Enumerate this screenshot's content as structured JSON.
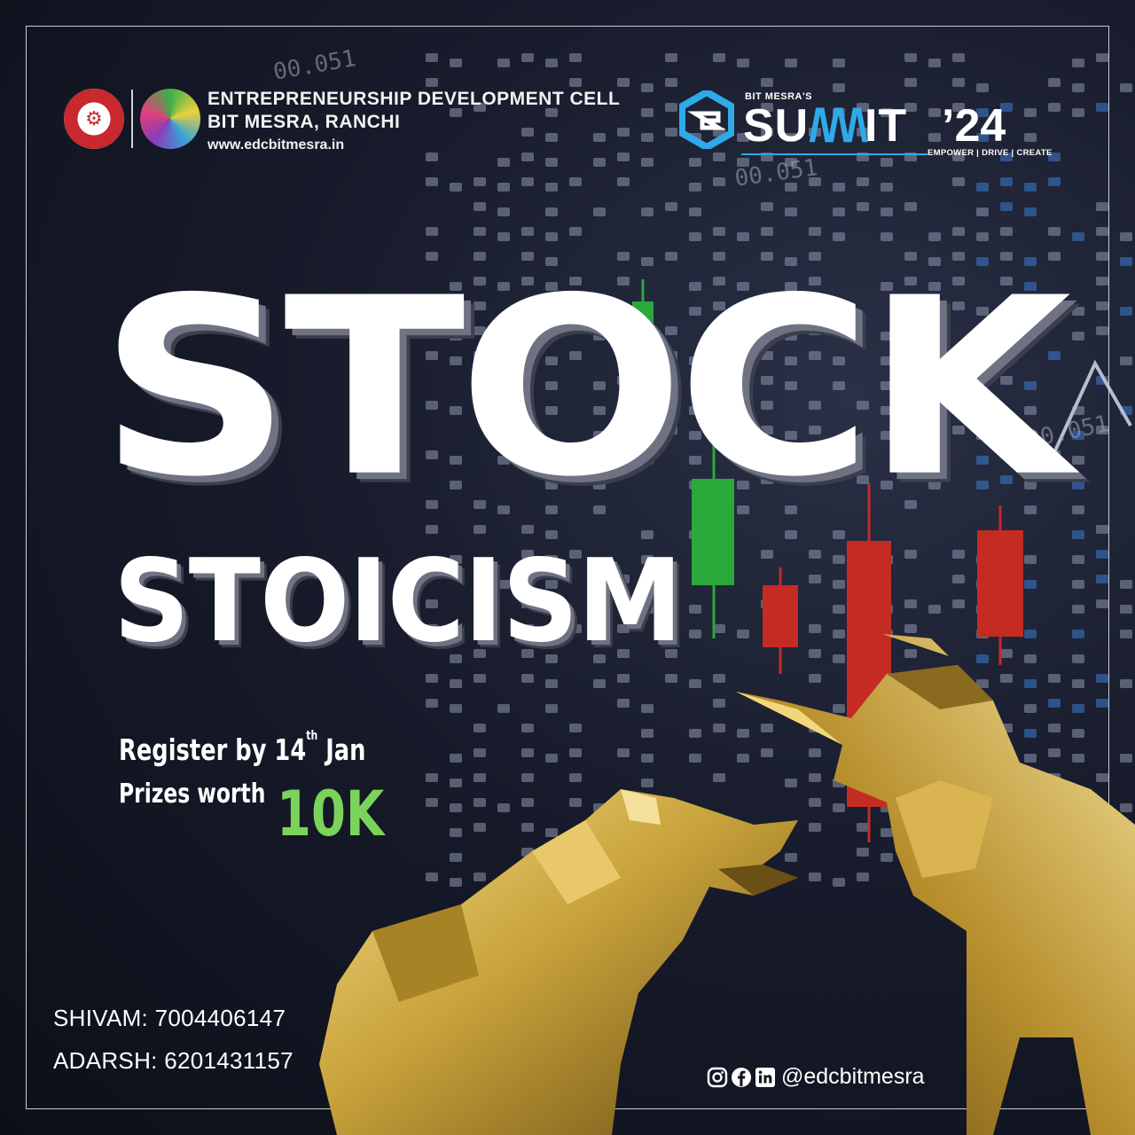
{
  "header": {
    "org_line1": "ENTREPRENEURSHIP DEVELOPMENT CELL",
    "org_line2": "BIT MESRA, RANCHI",
    "website": "www.edcbitmesra.in"
  },
  "summit": {
    "prefix": "BIT MESRA'S",
    "word_start": "SU",
    "word_end": "IT",
    "year": "’24",
    "tagline": "EMPOWER | DRIVE | CREATE"
  },
  "event": {
    "title_line1": "STOCK",
    "title_line2": "STOICISM",
    "register_text": "Register by 14",
    "register_sup": "th",
    "register_month": "Jan",
    "prize_label": "Prizes worth",
    "prize_value": "10K"
  },
  "contacts": [
    "SHIVAM: 7004406147",
    "ADARSH: 6201431157"
  ],
  "social": {
    "handle": "@edcbitmesra",
    "icons": [
      "instagram-icon",
      "facebook-icon",
      "linkedin-icon"
    ]
  },
  "colors": {
    "background": "#111421",
    "accent_green": "#7ad35a",
    "summit_blue": "#2fa9e8",
    "candle_red": "#c42b22",
    "candle_green": "#2aa83a",
    "gold": "#c9a33b"
  }
}
